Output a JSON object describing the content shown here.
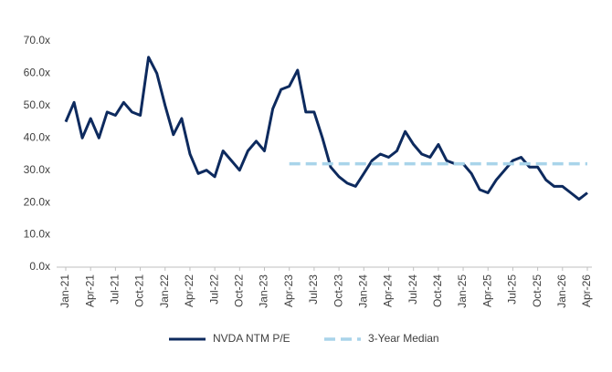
{
  "chart_data": {
    "type": "line",
    "categories": [
      "Jan-21",
      null,
      null,
      "Apr-21",
      null,
      null,
      "Jul-21",
      null,
      null,
      "Oct-21",
      null,
      null,
      "Jan-22",
      null,
      null,
      "Apr-22",
      null,
      null,
      "Jul-22",
      null,
      null,
      "Oct-22",
      null,
      null,
      "Jan-23",
      null,
      null,
      "Apr-23",
      null,
      null,
      "Jul-23",
      null,
      null,
      "Oct-23",
      null,
      null,
      "Jan-24",
      null,
      null,
      "Apr-24",
      null,
      null,
      "Jul-24",
      null,
      null,
      "Oct-24",
      null,
      null,
      "Jan-25",
      null,
      null,
      "Apr-25",
      null,
      null,
      "Jul-25",
      null,
      null,
      "Oct-25",
      null,
      null,
      "Jan-26",
      null,
      null,
      "Apr-26"
    ],
    "series": [
      {
        "name": "NVDA NTM P/E",
        "color": "#0d2a5e",
        "style": "solid",
        "values": [
          45,
          51,
          40,
          46,
          40,
          48,
          47,
          51,
          48,
          47,
          65,
          60,
          50,
          41,
          46,
          35,
          29,
          30,
          28,
          36,
          33,
          30,
          36,
          39,
          36,
          49,
          55,
          56,
          61,
          48,
          48,
          40,
          31,
          28,
          26,
          25,
          29,
          33,
          35,
          34,
          36,
          42,
          38,
          35,
          34,
          38,
          33,
          32,
          32,
          29,
          24,
          23,
          27,
          30,
          33,
          34,
          31,
          31,
          27,
          25,
          25,
          23,
          21,
          23
        ]
      },
      {
        "name": "3-Year Median",
        "color": "#a9d4ea",
        "style": "dashed",
        "values": [
          null,
          null,
          null,
          null,
          null,
          null,
          null,
          null,
          null,
          null,
          null,
          null,
          null,
          null,
          null,
          null,
          null,
          null,
          null,
          null,
          null,
          null,
          null,
          null,
          null,
          null,
          null,
          32,
          32,
          32,
          32,
          32,
          32,
          32,
          32,
          32,
          32,
          32,
          32,
          32,
          32,
          32,
          32,
          32,
          32,
          32,
          32,
          32,
          32,
          32,
          32,
          32,
          32,
          32,
          32,
          32,
          32,
          32,
          32,
          32,
          32,
          32,
          32,
          32
        ]
      }
    ],
    "ylim": [
      0,
      70
    ],
    "yticks": [
      {
        "value": 0,
        "label": "0.0x"
      },
      {
        "value": 10,
        "label": "10.0x"
      },
      {
        "value": 20,
        "label": "20.0x"
      },
      {
        "value": 30,
        "label": "30.0x"
      },
      {
        "value": 40,
        "label": "40.0x"
      },
      {
        "value": 50,
        "label": "50.0x"
      },
      {
        "value": 60,
        "label": "60.0x"
      },
      {
        "value": 70,
        "label": "70.0x"
      }
    ],
    "grid": false,
    "legend": "bottom"
  }
}
